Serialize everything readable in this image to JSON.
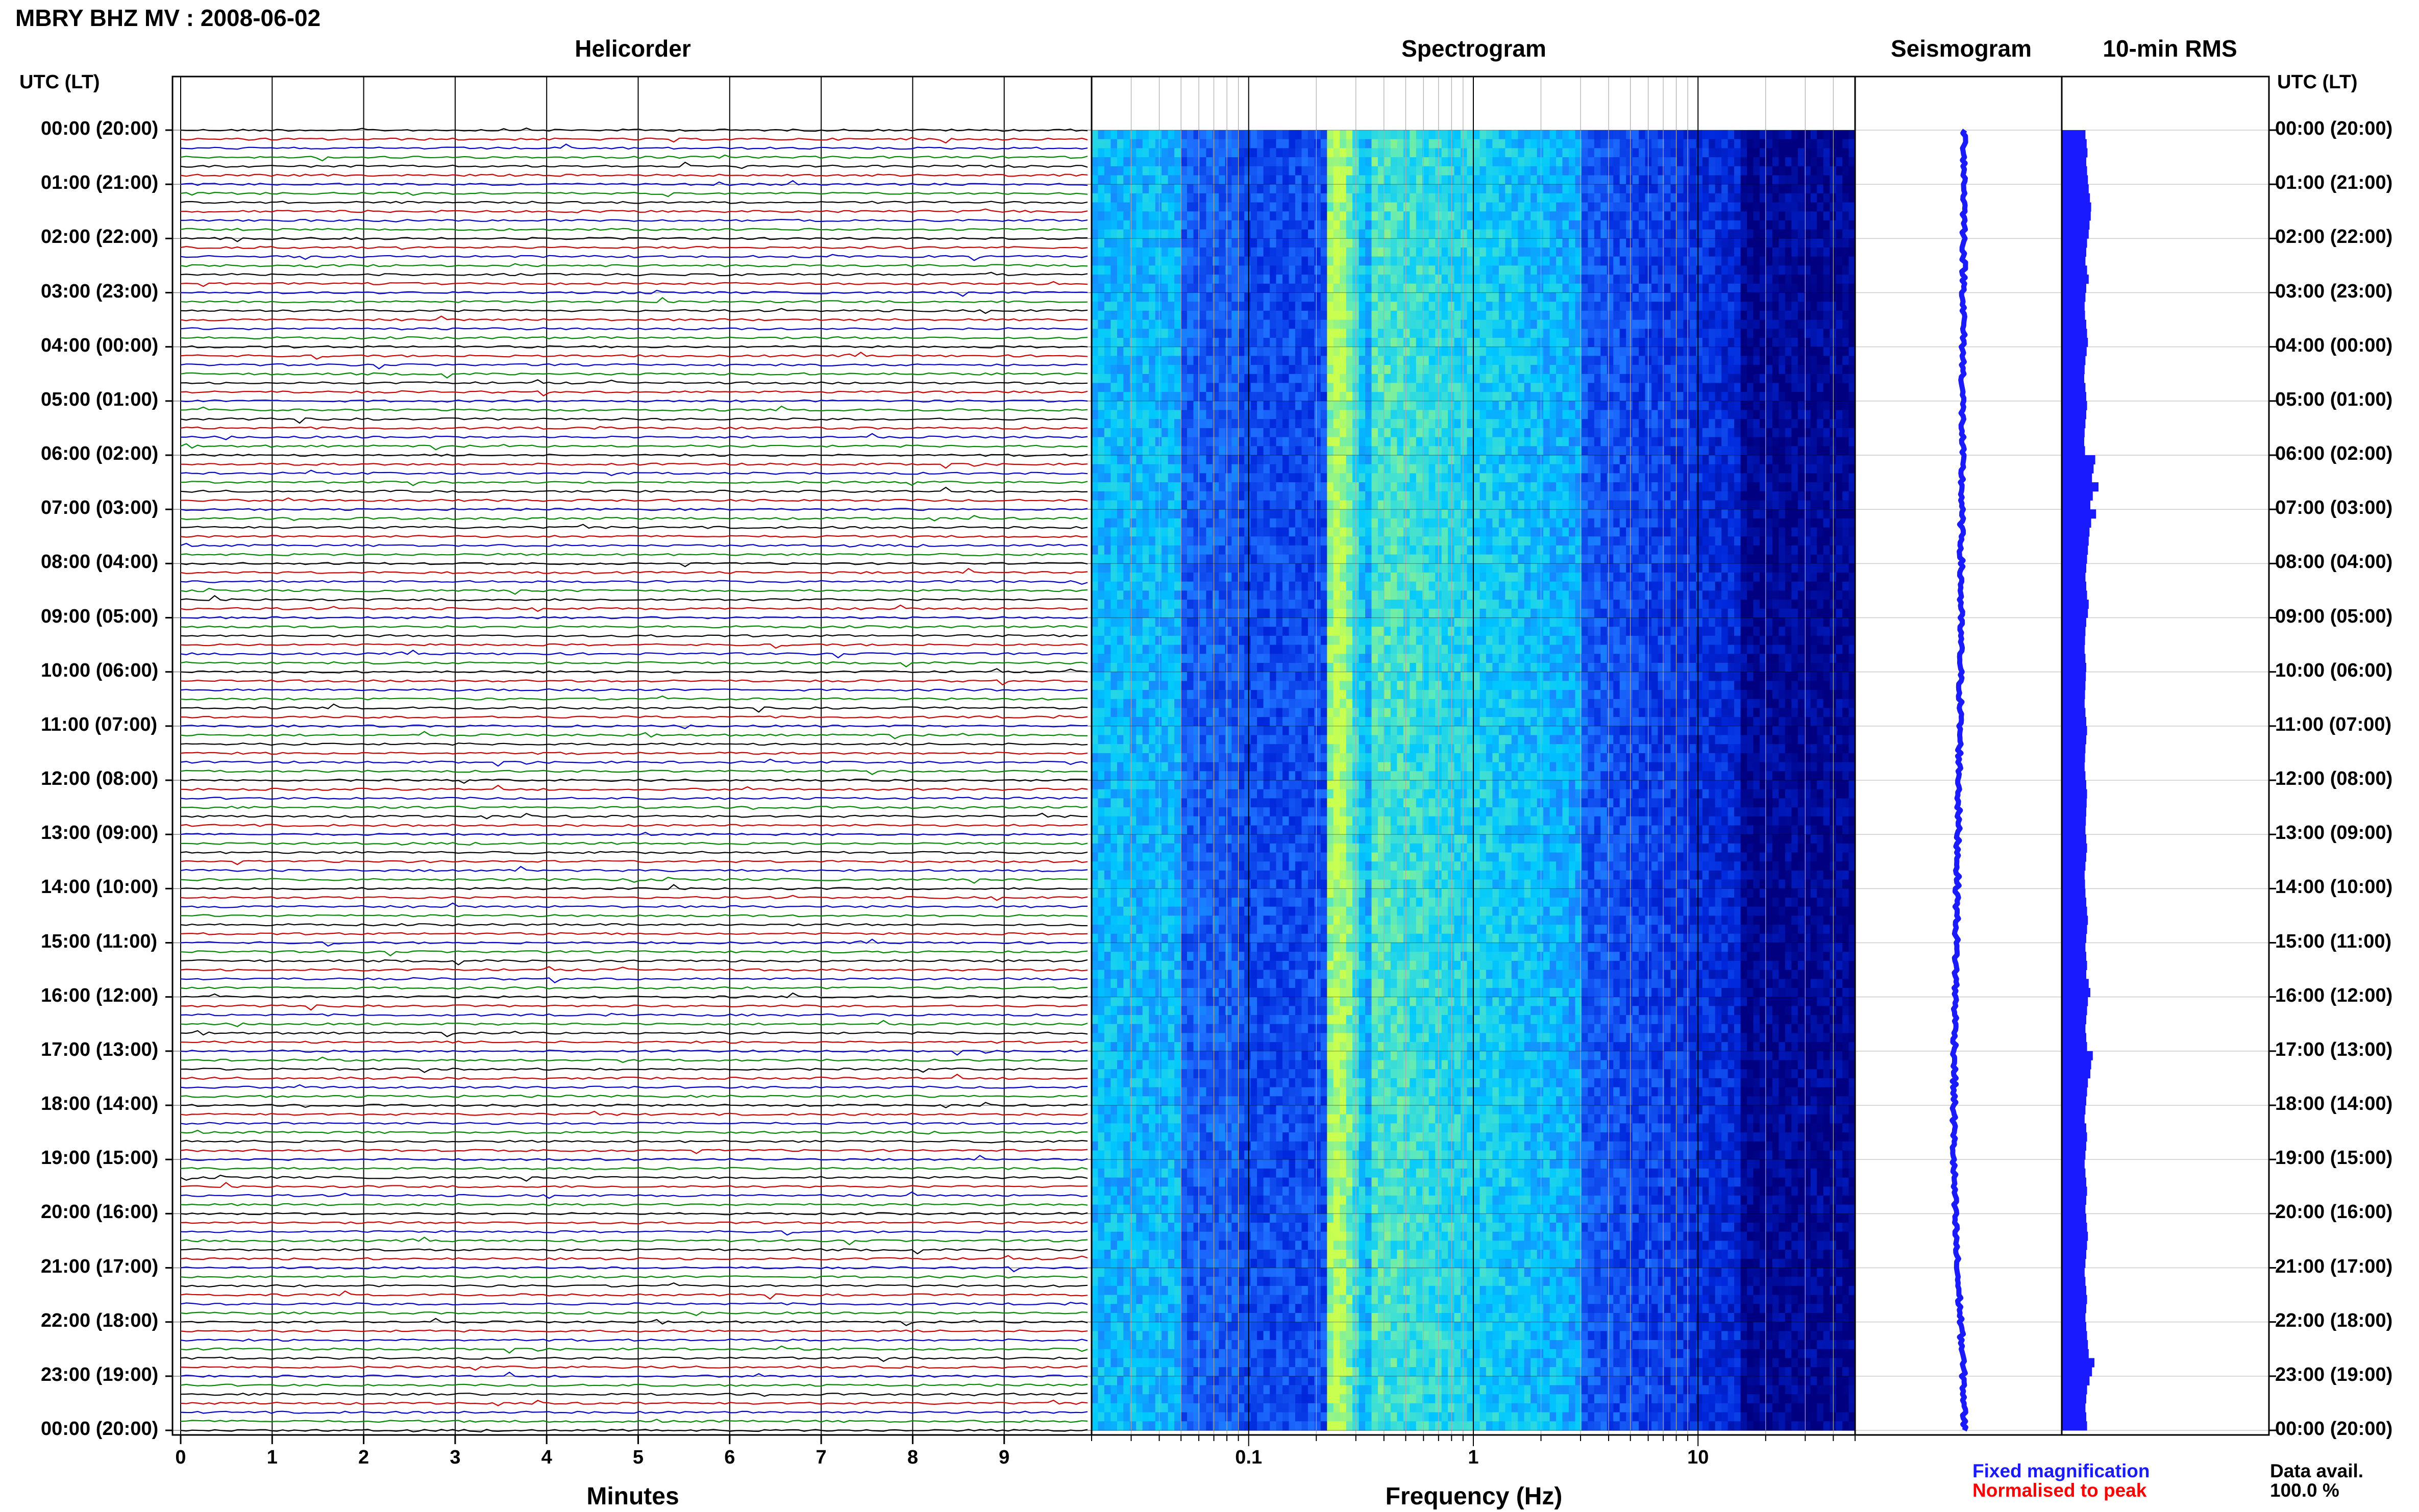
{
  "header": {
    "title": "MBRY BHZ MV : 2008-06-02"
  },
  "panels": {
    "helicorder": "Helicorder",
    "spectrogram": "Spectrogram",
    "seismogram": "Seismogram",
    "rms": "10-min RMS"
  },
  "axis": {
    "utc_label_left": "UTC (LT)",
    "utc_label_right": "UTC (LT)",
    "minutes_label": "Minutes",
    "frequency_label": "Frequency (Hz)"
  },
  "footer": {
    "legend_fixed": "Fixed magnification",
    "legend_normalised": "Normalised to peak",
    "data_avail_label": "Data avail.",
    "data_avail_value": "100.0 %"
  },
  "colors": {
    "fixed": "#1a1aff",
    "normalised": "#ff0000",
    "trace_cycle": [
      "#000000",
      "#cc0000",
      "#0000cc",
      "#008800"
    ],
    "spectrogram_low": "#000080",
    "spectrogram_high": "#c8ff50"
  },
  "chart_data": [
    {
      "type": "line",
      "name": "helicorder",
      "title": "Helicorder",
      "xlabel": "Minutes",
      "ylabel": "UTC (LT)",
      "xlim": [
        0,
        10
      ],
      "x_ticks": [
        "0",
        "1",
        "2",
        "3",
        "4",
        "5",
        "6",
        "7",
        "8",
        "9"
      ],
      "time_labels": [
        "00:00 (20:00)",
        "01:00 (21:00)",
        "02:00 (22:00)",
        "03:00 (23:00)",
        "04:00 (00:00)",
        "05:00 (01:00)",
        "06:00 (02:00)",
        "07:00 (03:00)",
        "08:00 (04:00)",
        "09:00 (05:00)",
        "10:00 (06:00)",
        "11:00 (07:00)",
        "12:00 (08:00)",
        "13:00 (09:00)",
        "14:00 (10:00)",
        "15:00 (11:00)",
        "16:00 (12:00)",
        "17:00 (13:00)",
        "18:00 (14:00)",
        "19:00 (15:00)",
        "20:00 (16:00)",
        "21:00 (17:00)",
        "22:00 (18:00)",
        "23:00 (19:00)",
        "00:00 (20:00)"
      ],
      "lines_per_hour": 6,
      "line_minutes": 10,
      "grid": true
    },
    {
      "type": "heatmap",
      "name": "spectrogram",
      "title": "Spectrogram",
      "xlabel": "Frequency (Hz)",
      "x_scale": "log",
      "xlim": [
        0.02,
        50
      ],
      "x_ticks": [
        0.1,
        1,
        10
      ],
      "x_tick_labels": [
        "0.1",
        "1",
        "10"
      ],
      "peak_frequency": 0.25,
      "rows": 144
    },
    {
      "type": "line",
      "name": "seismogram",
      "title": "Seismogram",
      "values_per_hour": [
        0.4,
        0.4,
        0.38,
        0.36,
        0.33,
        0.3,
        0.28,
        0.25,
        0.22,
        0.2,
        0.18,
        0.16,
        0.1,
        0.05,
        0.0,
        -0.05,
        -0.1,
        -0.14,
        -0.18,
        -0.2,
        -0.12,
        0.0,
        0.2,
        0.35,
        0.4
      ]
    },
    {
      "type": "bar",
      "name": "rms",
      "title": "10-min RMS",
      "orientation": "horizontal",
      "values": [
        0.58,
        0.61,
        0.63,
        0.6,
        0.62,
        0.64,
        0.66,
        0.69,
        0.72,
        0.71,
        0.68,
        0.66,
        0.62,
        0.6,
        0.58,
        0.62,
        0.66,
        0.6,
        0.58,
        0.56,
        0.57,
        0.6,
        0.62,
        0.64,
        0.61,
        0.58,
        0.56,
        0.55,
        0.58,
        0.6,
        0.62,
        0.6,
        0.58,
        0.56,
        0.55,
        0.57,
        0.82,
        0.78,
        0.74,
        0.9,
        0.76,
        0.7,
        0.84,
        0.72,
        0.68,
        0.66,
        0.64,
        0.62,
        0.6,
        0.58,
        0.6,
        0.62,
        0.66,
        0.64,
        0.6,
        0.58,
        0.57,
        0.56,
        0.58,
        0.6,
        0.59,
        0.58,
        0.57,
        0.56,
        0.58,
        0.6,
        0.62,
        0.6,
        0.58,
        0.57,
        0.56,
        0.58,
        0.6,
        0.62,
        0.61,
        0.6,
        0.59,
        0.58,
        0.6,
        0.62,
        0.6,
        0.58,
        0.56,
        0.57,
        0.58,
        0.6,
        0.62,
        0.64,
        0.62,
        0.6,
        0.58,
        0.6,
        0.62,
        0.6,
        0.66,
        0.7,
        0.64,
        0.62,
        0.6,
        0.58,
        0.6,
        0.62,
        0.76,
        0.72,
        0.7,
        0.64,
        0.62,
        0.6,
        0.58,
        0.56,
        0.6,
        0.62,
        0.6,
        0.58,
        0.56,
        0.58,
        0.6,
        0.62,
        0.6,
        0.58,
        0.6,
        0.62,
        0.64,
        0.62,
        0.6,
        0.58,
        0.56,
        0.58,
        0.6,
        0.62,
        0.6,
        0.58,
        0.6,
        0.62,
        0.64,
        0.66,
        0.8,
        0.74,
        0.68,
        0.62,
        0.6,
        0.58,
        0.6,
        0.62
      ]
    }
  ]
}
